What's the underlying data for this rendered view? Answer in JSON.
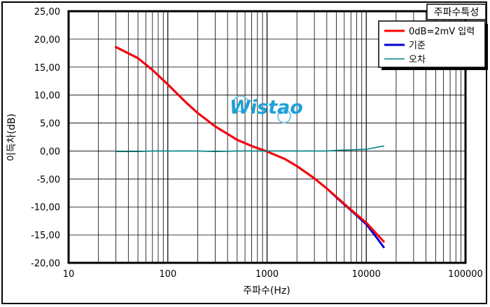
{
  "chart_data": {
    "type": "line",
    "title": "주파수특성",
    "xlabel": "주파수(Hz)",
    "ylabel": "이득차(dB)",
    "x_scale": "log",
    "xlim": [
      10,
      100000
    ],
    "ylim": [
      -20,
      25
    ],
    "grid": true,
    "legend_placement": "top-right",
    "x_tick_labels": [
      "10",
      "100",
      "1000",
      "10000",
      "100000"
    ],
    "y_ticks": [
      25,
      20,
      15,
      10,
      5,
      0,
      -5,
      -10,
      -15,
      -20
    ],
    "y_tick_labels": [
      "25,00",
      "20,00",
      "15,00",
      "10,00",
      "5,00",
      "0,00",
      "-5,00",
      "-10,00",
      "-15,00",
      "-20,00"
    ],
    "series": [
      {
        "name": "0dB=2mV  입력",
        "color": "#ff0000",
        "x": [
          30,
          50,
          70,
          100,
          150,
          200,
          300,
          500,
          700,
          1000,
          1500,
          2000,
          3000,
          4000,
          5000,
          7000,
          10000,
          13000,
          15000
        ],
        "y": [
          18.6,
          16.6,
          14.5,
          11.9,
          8.8,
          6.8,
          4.4,
          2.0,
          0.9,
          -0.1,
          -1.4,
          -2.7,
          -4.9,
          -6.7,
          -8.2,
          -10.5,
          -12.8,
          -15.0,
          -16.2
        ]
      },
      {
        "name": "기준",
        "color": "#0000cc",
        "x": [
          30,
          50,
          70,
          100,
          150,
          200,
          300,
          500,
          700,
          1000,
          1500,
          2000,
          3000,
          4000,
          5000,
          7000,
          10000,
          13000,
          15000
        ],
        "y": [
          18.6,
          16.6,
          14.5,
          11.9,
          8.8,
          6.8,
          4.4,
          2.0,
          0.9,
          -0.1,
          -1.4,
          -2.7,
          -4.9,
          -6.7,
          -8.3,
          -10.6,
          -13.1,
          -15.7,
          -17.2
        ]
      },
      {
        "name": "오차",
        "color": "#008080",
        "x": [
          30,
          50,
          70,
          100,
          150,
          200,
          300,
          500,
          700,
          1000,
          1500,
          2000,
          3000,
          4000,
          5000,
          7000,
          10000,
          13000,
          15000
        ],
        "y": [
          -0.1,
          -0.1,
          0.0,
          0.0,
          0.0,
          0.0,
          -0.1,
          0.0,
          0.0,
          0.0,
          0.0,
          0.0,
          0.0,
          0.0,
          0.1,
          0.2,
          0.3,
          0.7,
          0.9
        ]
      }
    ]
  },
  "watermark": {
    "text": "Wistao",
    "color": "#1fa0d8"
  }
}
